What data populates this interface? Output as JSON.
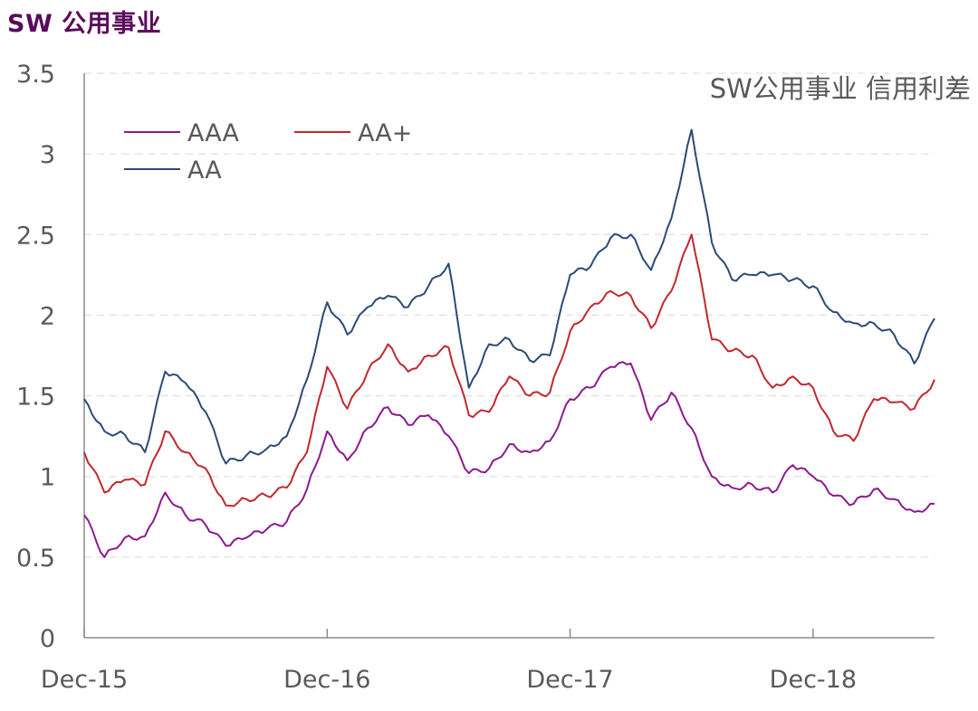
{
  "page": {
    "title": "SW 公用事业"
  },
  "chart_data": {
    "type": "line",
    "title": "SW公用事业 信用利差",
    "xlabel": "",
    "ylabel": "",
    "ylim": [
      0,
      3.5
    ],
    "yticks": [
      "0",
      "0.5",
      "1",
      "1.5",
      "2",
      "2.5",
      "3",
      "3.5"
    ],
    "xticks": [
      "Dec-15",
      "Dec-16",
      "Dec-17",
      "Dec-18"
    ],
    "x_range": [
      "2015-12",
      "2019-06"
    ],
    "grid": true,
    "legend": "top-left",
    "series": [
      {
        "name": "AAA",
        "color": "#8b1a8e",
        "points": [
          [
            "2015-12",
            0.76
          ],
          [
            "2016-01",
            0.5
          ],
          [
            "2016-02",
            0.62
          ],
          [
            "2016-03",
            0.63
          ],
          [
            "2016-04",
            0.9
          ],
          [
            "2016-05",
            0.76
          ],
          [
            "2016-06",
            0.7
          ],
          [
            "2016-07",
            0.57
          ],
          [
            "2016-08",
            0.62
          ],
          [
            "2016-09",
            0.67
          ],
          [
            "2016-10",
            0.72
          ],
          [
            "2016-11",
            0.92
          ],
          [
            "2016-12",
            1.28
          ],
          [
            "2017-01",
            1.1
          ],
          [
            "2017-02",
            1.3
          ],
          [
            "2017-03",
            1.43
          ],
          [
            "2017-04",
            1.32
          ],
          [
            "2017-05",
            1.38
          ],
          [
            "2017-06",
            1.25
          ],
          [
            "2017-07",
            1.02
          ],
          [
            "2017-08",
            1.05
          ],
          [
            "2017-09",
            1.2
          ],
          [
            "2017-10",
            1.15
          ],
          [
            "2017-11",
            1.22
          ],
          [
            "2017-12",
            1.48
          ],
          [
            "2018-01",
            1.55
          ],
          [
            "2018-02",
            1.68
          ],
          [
            "2018-03",
            1.7
          ],
          [
            "2018-04",
            1.35
          ],
          [
            "2018-05",
            1.52
          ],
          [
            "2018-06",
            1.3
          ],
          [
            "2018-07",
            1.0
          ],
          [
            "2018-08",
            0.93
          ],
          [
            "2018-09",
            0.95
          ],
          [
            "2018-10",
            0.9
          ],
          [
            "2018-11",
            1.07
          ],
          [
            "2018-12",
            1.0
          ],
          [
            "2019-01",
            0.88
          ],
          [
            "2019-02",
            0.83
          ],
          [
            "2019-03",
            0.92
          ],
          [
            "2019-04",
            0.86
          ],
          [
            "2019-05",
            0.78
          ],
          [
            "2019-06",
            0.83
          ]
        ]
      },
      {
        "name": "AA+",
        "color": "#c0282d",
        "points": [
          [
            "2015-12",
            1.15
          ],
          [
            "2016-01",
            0.9
          ],
          [
            "2016-02",
            0.98
          ],
          [
            "2016-03",
            0.95
          ],
          [
            "2016-04",
            1.28
          ],
          [
            "2016-05",
            1.15
          ],
          [
            "2016-06",
            1.05
          ],
          [
            "2016-07",
            0.82
          ],
          [
            "2016-08",
            0.86
          ],
          [
            "2016-09",
            0.88
          ],
          [
            "2016-10",
            0.93
          ],
          [
            "2016-11",
            1.15
          ],
          [
            "2016-12",
            1.68
          ],
          [
            "2017-01",
            1.42
          ],
          [
            "2017-02",
            1.65
          ],
          [
            "2017-03",
            1.82
          ],
          [
            "2017-04",
            1.65
          ],
          [
            "2017-05",
            1.75
          ],
          [
            "2017-06",
            1.8
          ],
          [
            "2017-07",
            1.38
          ],
          [
            "2017-08",
            1.4
          ],
          [
            "2017-09",
            1.62
          ],
          [
            "2017-10",
            1.5
          ],
          [
            "2017-11",
            1.52
          ],
          [
            "2017-12",
            1.9
          ],
          [
            "2018-01",
            2.05
          ],
          [
            "2018-02",
            2.15
          ],
          [
            "2018-03",
            2.12
          ],
          [
            "2018-04",
            1.92
          ],
          [
            "2018-05",
            2.15
          ],
          [
            "2018-06",
            2.5
          ],
          [
            "2018-07",
            1.85
          ],
          [
            "2018-08",
            1.78
          ],
          [
            "2018-09",
            1.75
          ],
          [
            "2018-10",
            1.55
          ],
          [
            "2018-11",
            1.62
          ],
          [
            "2018-12",
            1.55
          ],
          [
            "2019-01",
            1.28
          ],
          [
            "2019-02",
            1.22
          ],
          [
            "2019-03",
            1.48
          ],
          [
            "2019-04",
            1.46
          ],
          [
            "2019-05",
            1.42
          ],
          [
            "2019-06",
            1.6
          ]
        ]
      },
      {
        "name": "AA",
        "color": "#2c4a74",
        "points": [
          [
            "2015-12",
            1.48
          ],
          [
            "2016-01",
            1.28
          ],
          [
            "2016-02",
            1.26
          ],
          [
            "2016-03",
            1.15
          ],
          [
            "2016-04",
            1.65
          ],
          [
            "2016-05",
            1.58
          ],
          [
            "2016-06",
            1.4
          ],
          [
            "2016-07",
            1.08
          ],
          [
            "2016-08",
            1.13
          ],
          [
            "2016-09",
            1.17
          ],
          [
            "2016-10",
            1.25
          ],
          [
            "2016-11",
            1.6
          ],
          [
            "2016-12",
            2.08
          ],
          [
            "2017-01",
            1.88
          ],
          [
            "2017-02",
            2.05
          ],
          [
            "2017-03",
            2.12
          ],
          [
            "2017-04",
            2.05
          ],
          [
            "2017-05",
            2.18
          ],
          [
            "2017-06",
            2.32
          ],
          [
            "2017-07",
            1.55
          ],
          [
            "2017-08",
            1.82
          ],
          [
            "2017-09",
            1.85
          ],
          [
            "2017-10",
            1.72
          ],
          [
            "2017-11",
            1.75
          ],
          [
            "2017-12",
            2.25
          ],
          [
            "2018-01",
            2.3
          ],
          [
            "2018-02",
            2.48
          ],
          [
            "2018-03",
            2.5
          ],
          [
            "2018-04",
            2.28
          ],
          [
            "2018-05",
            2.6
          ],
          [
            "2018-06",
            3.15
          ],
          [
            "2018-07",
            2.45
          ],
          [
            "2018-08",
            2.22
          ],
          [
            "2018-09",
            2.25
          ],
          [
            "2018-10",
            2.25
          ],
          [
            "2018-11",
            2.22
          ],
          [
            "2018-12",
            2.18
          ],
          [
            "2019-01",
            2.02
          ],
          [
            "2019-02",
            1.95
          ],
          [
            "2019-03",
            1.95
          ],
          [
            "2019-04",
            1.88
          ],
          [
            "2019-05",
            1.7
          ],
          [
            "2019-06",
            1.98
          ]
        ]
      }
    ]
  }
}
